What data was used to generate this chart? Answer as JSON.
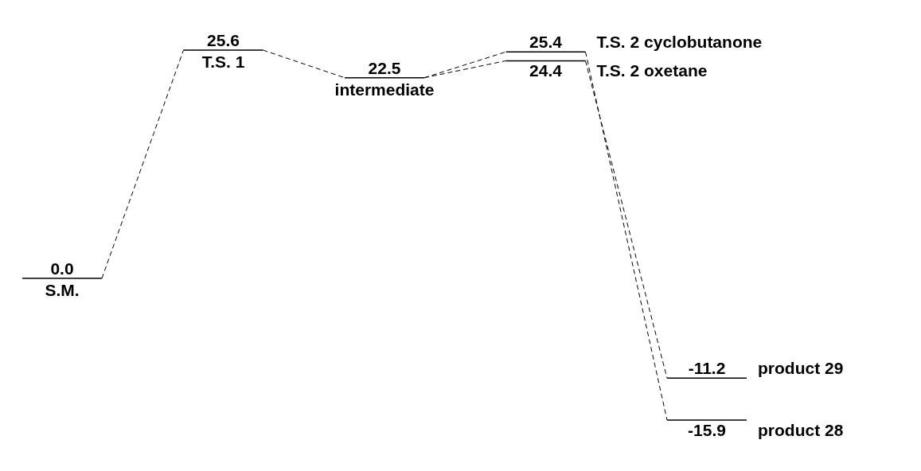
{
  "chart_data": {
    "type": "other",
    "categories": [
      "S.M.",
      "T.S. 1",
      "intermediate",
      "T.S. 2 cyclobutanone",
      "T.S. 2 oxetane",
      "product 29",
      "product 28"
    ],
    "series": [
      {
        "color": "#000000",
        "values": [
          0.0,
          25.6,
          22.5,
          25.4,
          null,
          null,
          -15.9
        ],
        "value_labels": [
          "0.0",
          "25.6",
          "22.5",
          "25.4",
          null,
          null,
          "-15.9"
        ]
      },
      {
        "color": "#000000",
        "values": [
          null,
          null,
          null,
          null,
          24.4,
          -11.2,
          null
        ],
        "value_labels": [
          null,
          null,
          null,
          null,
          "24.4",
          "-11.2",
          null
        ]
      }
    ]
  }
}
